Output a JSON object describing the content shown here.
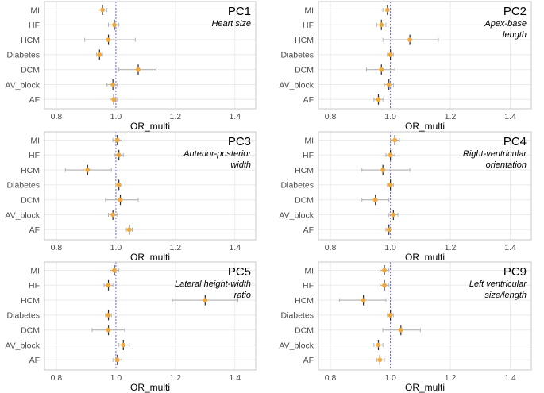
{
  "chart_data": [
    {
      "type": "forest",
      "title": "PC1",
      "subtitle": [
        "Heart size"
      ],
      "xlabel": "OR_multi",
      "xlim": [
        0.76,
        1.47
      ],
      "xticks": [
        0.8,
        1.0,
        1.2,
        1.4
      ],
      "xtick_labels": [
        "0.8",
        "1.0",
        "1.2",
        "1.4"
      ],
      "reference_line": 1.0,
      "categories": [
        "MI",
        "HF",
        "HCM",
        "Diabetes",
        "DCM",
        "AV_block",
        "AF"
      ],
      "estimates": [
        0.955,
        0.995,
        0.975,
        0.945,
        1.075,
        0.99,
        0.993
      ],
      "lower": [
        0.94,
        0.975,
        0.895,
        0.935,
        1.01,
        0.97,
        0.98
      ],
      "upper": [
        0.97,
        1.01,
        1.065,
        0.955,
        1.135,
        1.005,
        1.005
      ]
    },
    {
      "type": "forest",
      "title": "PC2",
      "subtitle": [
        "Apex-base",
        "length"
      ],
      "xlabel": "OR_multi",
      "xlim": [
        0.76,
        1.47
      ],
      "xticks": [
        0.8,
        1.0,
        1.2,
        1.4
      ],
      "xtick_labels": [
        "0.8",
        "1.0",
        "1.2",
        "1.4"
      ],
      "reference_line": 1.0,
      "categories": [
        "MI",
        "HF",
        "HCM",
        "Diabetes",
        "DCM",
        "AV_block",
        "AF"
      ],
      "estimates": [
        0.99,
        0.97,
        1.065,
        1.0,
        0.97,
        0.995,
        0.96
      ],
      "lower": [
        0.975,
        0.955,
        0.975,
        0.99,
        0.92,
        0.98,
        0.945
      ],
      "upper": [
        1.005,
        0.985,
        1.16,
        1.01,
        1.015,
        1.01,
        0.975
      ]
    },
    {
      "type": "forest",
      "title": "PC3",
      "subtitle": [
        "Anterior-posterior",
        "width"
      ],
      "xlabel": "OR_multi",
      "xlim": [
        0.76,
        1.47
      ],
      "xticks": [
        0.8,
        1.0,
        1.2,
        1.4
      ],
      "xtick_labels": [
        "0.8",
        "1.0",
        "1.2",
        "1.4"
      ],
      "reference_line": 1.0,
      "categories": [
        "MI",
        "HF",
        "HCM",
        "Diabetes",
        "DCM",
        "AV_block",
        "AF"
      ],
      "estimates": [
        1.005,
        1.01,
        0.905,
        1.01,
        1.015,
        0.99,
        1.045
      ],
      "lower": [
        0.99,
        0.995,
        0.83,
        1.0,
        0.965,
        0.975,
        1.035
      ],
      "upper": [
        1.02,
        1.025,
        0.985,
        1.02,
        1.075,
        1.005,
        1.055
      ]
    },
    {
      "type": "forest",
      "title": "PC4",
      "subtitle": [
        "Right-ventricular",
        "orientation"
      ],
      "xlabel": "OR_multi",
      "xlim": [
        0.76,
        1.47
      ],
      "xticks": [
        0.8,
        1.0,
        1.2,
        1.4
      ],
      "xtick_labels": [
        "0.8",
        "1.0",
        "1.2",
        "1.4"
      ],
      "reference_line": 1.0,
      "categories": [
        "MI",
        "HF",
        "HCM",
        "Diabetes",
        "DCM",
        "AV_block",
        "AF"
      ],
      "estimates": [
        1.015,
        1.0,
        0.975,
        1.0,
        0.95,
        1.01,
        0.995
      ],
      "lower": [
        1.0,
        0.985,
        0.905,
        0.99,
        0.905,
        0.995,
        0.985
      ],
      "upper": [
        1.03,
        1.015,
        1.065,
        1.01,
        0.995,
        1.025,
        1.005
      ]
    },
    {
      "type": "forest",
      "title": "PC5",
      "subtitle": [
        "Lateral height-width",
        "ratio"
      ],
      "xlabel": "OR_multi",
      "xlim": [
        0.76,
        1.47
      ],
      "xticks": [
        0.8,
        1.0,
        1.2,
        1.4
      ],
      "xtick_labels": [
        "0.8",
        "1.0",
        "1.2",
        "1.4"
      ],
      "reference_line": 1.0,
      "categories": [
        "MI",
        "HF",
        "HCM",
        "Diabetes",
        "DCM",
        "AV_block",
        "AF"
      ],
      "estimates": [
        0.995,
        0.975,
        1.3,
        0.975,
        0.975,
        1.025,
        1.005
      ],
      "lower": [
        0.98,
        0.96,
        1.19,
        0.965,
        0.92,
        1.01,
        0.99
      ],
      "upper": [
        1.01,
        0.99,
        1.41,
        0.985,
        1.03,
        1.045,
        1.02
      ]
    },
    {
      "type": "forest",
      "title": "PC9",
      "subtitle": [
        "Left ventricular",
        "size/length"
      ],
      "xlabel": "OR_multi",
      "xlim": [
        0.76,
        1.47
      ],
      "xticks": [
        0.8,
        1.0,
        1.2,
        1.4
      ],
      "xtick_labels": [
        "0.8",
        "1.0",
        "1.2",
        "1.4"
      ],
      "reference_line": 1.0,
      "categories": [
        "MI",
        "HF",
        "HCM",
        "Diabetes",
        "DCM",
        "AV_block",
        "AF"
      ],
      "estimates": [
        0.98,
        0.98,
        0.91,
        1.0,
        1.035,
        0.96,
        0.965
      ],
      "lower": [
        0.965,
        0.965,
        0.83,
        0.99,
        0.975,
        0.945,
        0.955
      ],
      "upper": [
        0.995,
        0.995,
        0.985,
        1.01,
        1.1,
        0.975,
        0.98
      ]
    }
  ],
  "colors": {
    "point_fill": "#f2a93b",
    "point_line": "#2b2b2b",
    "ci": "#b3b3b3",
    "reference": "#6a6af0",
    "grid": "#ebebeb",
    "border": "#c8c8c8",
    "text": "#000000",
    "tick_text": "#4d4d4d"
  }
}
